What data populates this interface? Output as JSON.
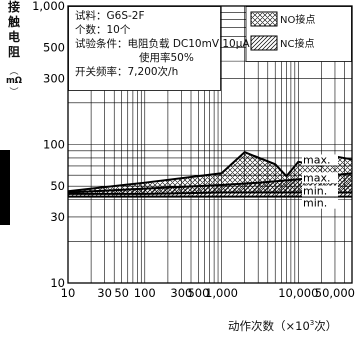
{
  "chart_data": {
    "type": "area",
    "ylabel": [
      "接",
      "触",
      "电",
      "阻"
    ],
    "ylabel_unit": "mΩ",
    "xlabel_text": "动作次数（×10",
    "xlabel_sup": "3",
    "xlabel_end": "次）",
    "x_scale": "log",
    "y_scale": "log",
    "xlim": [
      10,
      50000
    ],
    "ylim": [
      10,
      1000
    ],
    "grid": "on",
    "x_ticks": [
      {
        "value": 10,
        "label": "10"
      },
      {
        "value": 30,
        "label": "30"
      },
      {
        "value": 50,
        "label": "50"
      },
      {
        "value": 100,
        "label": "100"
      },
      {
        "value": 300,
        "label": "300"
      },
      {
        "value": 500,
        "label": "500"
      },
      {
        "value": 1000,
        "label": "1,000"
      },
      {
        "value": 10000,
        "label": "10,000"
      },
      {
        "value": 50000,
        "label": "50,000"
      }
    ],
    "y_ticks": [
      {
        "value": 10,
        "label": "10"
      },
      {
        "value": 30,
        "label": "30"
      },
      {
        "value": 50,
        "label": "50"
      },
      {
        "value": 100,
        "label": "100"
      },
      {
        "value": 300,
        "label": "300"
      },
      {
        "value": 500,
        "label": "500"
      },
      {
        "value": 1000,
        "label": "1,000"
      }
    ],
    "info_lines": [
      "试料：G6S-2F",
      "个数：10个",
      "试验条件：电阻负载 DC10mV 10μA",
      "使用率50%",
      "开关频率：7,200次/h"
    ],
    "legend": [
      {
        "label": "NO接点",
        "pattern": "crosshatch"
      },
      {
        "label": "NC接点",
        "pattern": "diagonal"
      }
    ],
    "annotations": [
      "max.",
      "max.",
      "min.",
      "min."
    ],
    "series": [
      {
        "name": "NO接点",
        "max": {
          "x": [
            10,
            100,
            1000,
            2000,
            5000,
            7000,
            10000,
            20000,
            30000,
            50000
          ],
          "y": [
            46,
            53,
            62,
            88,
            72,
            59,
            75,
            70,
            82,
            78
          ]
        },
        "min": {
          "x": [
            10,
            100,
            1000,
            10000,
            50000
          ],
          "y": [
            44,
            44,
            45,
            45,
            45
          ]
        }
      },
      {
        "name": "NC接点",
        "max": {
          "x": [
            10,
            100,
            1000,
            3000,
            10000,
            50000
          ],
          "y": [
            45,
            48,
            51,
            53,
            56,
            62
          ]
        },
        "min": {
          "x": [
            10,
            1000,
            50000
          ],
          "y": [
            42,
            42,
            42
          ]
        }
      }
    ]
  }
}
